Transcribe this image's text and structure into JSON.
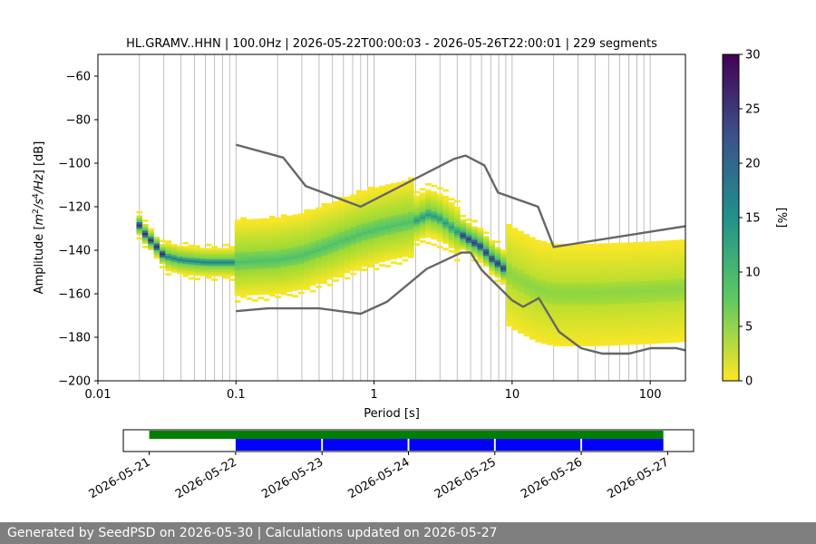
{
  "chart_data": [
    {
      "type": "heatmap",
      "title": "HL.GRAMV..HHN | 100.0Hz | 2026-05-22T00:00:03 - 2026-05-26T22:00:01 | 229 segments",
      "xlabel": "Period [s]",
      "ylabel_prefix": "Amplitude [",
      "ylabel_suffix": "] [dB]",
      "x_scale": "log",
      "xlim": [
        0.01,
        180
      ],
      "ylim": [
        -200,
        -50
      ],
      "x_ticks": [
        {
          "v": 0.01,
          "label": "0.01"
        },
        {
          "v": 0.1,
          "label": "0.1"
        },
        {
          "v": 1,
          "label": "1"
        },
        {
          "v": 10,
          "label": "10"
        },
        {
          "v": 100,
          "label": "100"
        }
      ],
      "y_ticks": [
        -200,
        -180,
        -160,
        -140,
        -120,
        -100,
        -80,
        -60
      ],
      "grid": "vertical",
      "colorbar": {
        "label": "[%]",
        "min": 0,
        "max": 30,
        "ticks": [
          0,
          5,
          10,
          15,
          20,
          25,
          30
        ],
        "colormap": "viridis_r"
      },
      "mode_curve": [
        {
          "x": 0.019,
          "y": -127
        },
        {
          "x": 0.022,
          "y": -133
        },
        {
          "x": 0.026,
          "y": -138
        },
        {
          "x": 0.03,
          "y": -143
        },
        {
          "x": 0.04,
          "y": -145
        },
        {
          "x": 0.06,
          "y": -146
        },
        {
          "x": 0.1,
          "y": -146
        },
        {
          "x": 0.2,
          "y": -145
        },
        {
          "x": 0.3,
          "y": -143
        },
        {
          "x": 0.5,
          "y": -138
        },
        {
          "x": 0.8,
          "y": -133
        },
        {
          "x": 1.2,
          "y": -130
        },
        {
          "x": 2,
          "y": -127
        },
        {
          "x": 2.5,
          "y": -124
        },
        {
          "x": 3,
          "y": -126
        },
        {
          "x": 4,
          "y": -132
        },
        {
          "x": 5,
          "y": -136
        },
        {
          "x": 6,
          "y": -139
        },
        {
          "x": 7,
          "y": -144
        },
        {
          "x": 10,
          "y": -152
        },
        {
          "x": 15,
          "y": -158
        },
        {
          "x": 20,
          "y": -160
        },
        {
          "x": 40,
          "y": -160
        },
        {
          "x": 100,
          "y": -159
        },
        {
          "x": 180,
          "y": -158
        }
      ],
      "nhnm": [
        {
          "x": 0.1,
          "y": -91.5
        },
        {
          "x": 0.22,
          "y": -97.4
        },
        {
          "x": 0.32,
          "y": -110.5
        },
        {
          "x": 0.8,
          "y": -120
        },
        {
          "x": 3.8,
          "y": -98
        },
        {
          "x": 4.6,
          "y": -96.5
        },
        {
          "x": 6.3,
          "y": -101
        },
        {
          "x": 7.9,
          "y": -113.5
        },
        {
          "x": 15.4,
          "y": -120
        },
        {
          "x": 20,
          "y": -138.5
        },
        {
          "x": 354.8,
          "y": -126
        }
      ],
      "nlnm": [
        {
          "x": 0.1,
          "y": -168
        },
        {
          "x": 0.17,
          "y": -166.7
        },
        {
          "x": 0.4,
          "y": -166.7
        },
        {
          "x": 0.8,
          "y": -169.2
        },
        {
          "x": 1.24,
          "y": -163.7
        },
        {
          "x": 2.4,
          "y": -148.6
        },
        {
          "x": 4.3,
          "y": -141.1
        },
        {
          "x": 5,
          "y": -141.1
        },
        {
          "x": 6,
          "y": -149
        },
        {
          "x": 10,
          "y": -163
        },
        {
          "x": 12,
          "y": -166
        },
        {
          "x": 15.6,
          "y": -162
        },
        {
          "x": 21.9,
          "y": -177.5
        },
        {
          "x": 31.6,
          "y": -185
        },
        {
          "x": 45,
          "y": -187.5
        },
        {
          "x": 70,
          "y": -187.5
        },
        {
          "x": 101,
          "y": -185
        },
        {
          "x": 154,
          "y": -185
        },
        {
          "x": 180,
          "y": -186
        }
      ]
    },
    {
      "type": "timeline",
      "x_ticks": [
        "2026-05-21",
        "2026-05-22",
        "2026-05-23",
        "2026-05-24",
        "2026-05-25",
        "2026-05-26",
        "2026-05-27"
      ],
      "xlim_days": [
        -0.3,
        6.3
      ],
      "data_available": {
        "start": 0.0,
        "end": 5.95,
        "color": "#008000"
      },
      "psd_segments": [
        {
          "start": 1.0,
          "end": 1.99
        },
        {
          "start": 2.01,
          "end": 2.99
        },
        {
          "start": 3.01,
          "end": 3.99
        },
        {
          "start": 4.01,
          "end": 4.99
        },
        {
          "start": 5.01,
          "end": 5.95
        }
      ],
      "psd_color": "#0000ff"
    }
  ],
  "footer": {
    "text": "Generated by SeedPSD on 2026-05-30 | Calculations updated on 2026-05-27"
  },
  "colors": {
    "model_lines": "#666666",
    "grid": "#b0b0b0"
  }
}
